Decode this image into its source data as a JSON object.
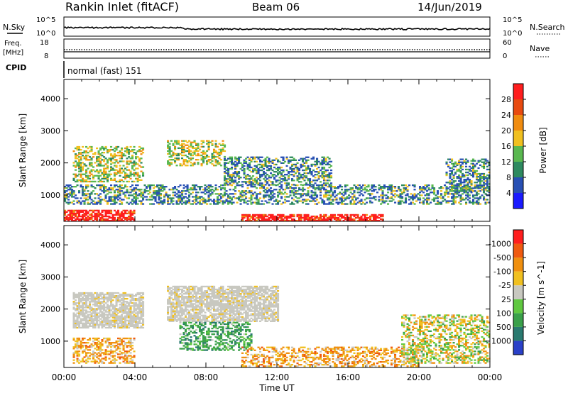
{
  "header": {
    "station": "Rankin Inlet (fitACF)",
    "beam": "Beam 06",
    "date": "14/Jun/2019"
  },
  "noise_panel": {
    "left_label": "N.Sky",
    "right_label": "N.Search",
    "tick_top_left": "10^5",
    "tick_bottom_left": "10^0",
    "tick_top_right": "10^5",
    "tick_bottom_right": "10^0"
  },
  "freq_panel": {
    "left_label_1": "Freq.",
    "left_label_2": "[MHz]",
    "right_label": "Nave",
    "tick_top_left": "18",
    "tick_bottom_left": "8",
    "tick_top_right": "60",
    "tick_bottom_right": "0"
  },
  "cpid_panel": {
    "label": "CPID",
    "mode": "normal (fast) 151"
  },
  "chart_data": [
    {
      "type": "heatmap",
      "title": "",
      "ylabel": "Slant Range [km]",
      "xlabel": "",
      "x_ticks": [
        "00:00",
        "04:00",
        "08:00",
        "12:00",
        "16:00",
        "20:00",
        "00:00"
      ],
      "ylim": [
        180,
        4600
      ],
      "y_ticks": [
        1000,
        2000,
        3000,
        4000
      ],
      "colorbar_label": "Power [dB]",
      "colorbar_ticks": [
        "4",
        "8",
        "12",
        "16",
        "20",
        "24",
        "28"
      ],
      "colors": [
        "#1a1aff",
        "#2850b4",
        "#2e8a60",
        "#5ab850",
        "#f0c020",
        "#f08c10",
        "#e84a10",
        "#ff1e1e"
      ],
      "regions": [
        {
          "h0": 0.0,
          "h1": 4.0,
          "r0": 180,
          "r1": 520,
          "level": "high"
        },
        {
          "h0": 10.0,
          "h1": 18.0,
          "r0": 180,
          "r1": 380,
          "level": "high"
        },
        {
          "h0": 0.5,
          "h1": 4.5,
          "r0": 1400,
          "r1": 2500,
          "level": "mid"
        },
        {
          "h0": 5.8,
          "h1": 9.0,
          "r0": 1900,
          "r1": 2700,
          "level": "mid"
        },
        {
          "h0": 9.0,
          "h1": 15.0,
          "r0": 1300,
          "r1": 2200,
          "level": "low"
        },
        {
          "h0": 0.0,
          "h1": 24.0,
          "r0": 700,
          "r1": 1300,
          "level": "low"
        },
        {
          "h0": 21.5,
          "h1": 24.0,
          "r0": 1100,
          "r1": 2100,
          "level": "low"
        }
      ]
    },
    {
      "type": "heatmap",
      "title": "",
      "ylabel": "Slant Range [km]",
      "xlabel": "Time UT",
      "x_ticks": [
        "00:00",
        "04:00",
        "08:00",
        "12:00",
        "16:00",
        "20:00",
        "00:00"
      ],
      "ylim": [
        180,
        4600
      ],
      "y_ticks": [
        1000,
        2000,
        3000,
        4000
      ],
      "colorbar_label": "Velocity [m s^-1]",
      "colorbar_ticks": [
        "1000",
        "500",
        "100",
        "25",
        "-25",
        "-100",
        "-500",
        "-1000"
      ],
      "colors": [
        "#2a40c8",
        "#2a7a70",
        "#3aa04a",
        "#60c840",
        "#c8c8c0",
        "#f0c020",
        "#f09010",
        "#f05a10",
        "#ff1e1e"
      ],
      "regions": [
        {
          "h0": 0.5,
          "h1": 4.5,
          "r0": 1400,
          "r1": 2500,
          "level": "ground"
        },
        {
          "h0": 5.8,
          "h1": 12.0,
          "r0": 1600,
          "r1": 2700,
          "level": "ground"
        },
        {
          "h0": 0.5,
          "h1": 4.0,
          "r0": 300,
          "r1": 1100,
          "level": "neg"
        },
        {
          "h0": 6.5,
          "h1": 10.5,
          "r0": 700,
          "r1": 1600,
          "level": "pos"
        },
        {
          "h0": 10.0,
          "h1": 20.0,
          "r0": 200,
          "r1": 800,
          "level": "neg"
        },
        {
          "h0": 19.0,
          "h1": 24.0,
          "r0": 300,
          "r1": 1800,
          "level": "mixed"
        }
      ]
    }
  ]
}
